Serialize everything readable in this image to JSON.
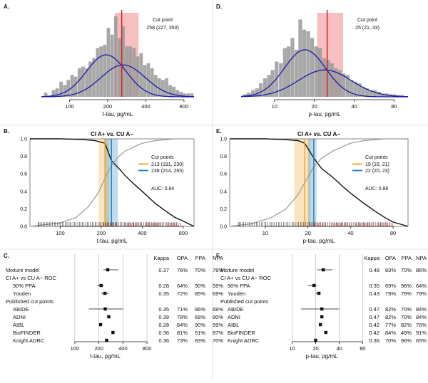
{
  "figure": {
    "panels": [
      {
        "id": "A",
        "letter": "A.",
        "kind": "histogram",
        "xlabel": "t-tau, pg/mL",
        "xscale": "log",
        "xticks": [
          100,
          200,
          400,
          800
        ],
        "xlim": [
          60,
          960
        ],
        "cut_label": "Cut point",
        "cut_value": "258 (227, 350)",
        "cut": 258,
        "ci": [
          227,
          350
        ],
        "colors": {
          "bars": "#999999",
          "curves": "#1a1aaa",
          "cut": "#cc2222",
          "ci_band": "#f4a9a9"
        }
      },
      {
        "id": "D",
        "letter": "D.",
        "kind": "histogram",
        "xlabel": "p-tau, pg/mL",
        "xscale": "log",
        "xticks": [
          10,
          20,
          40,
          80
        ],
        "xlim": [
          5.6,
          102
        ],
        "cut_label": "Cut point",
        "cut_value": "25 (21, 33)",
        "cut": 25,
        "ci": [
          21,
          33
        ],
        "colors": {
          "bars": "#999999",
          "curves": "#1a1aaa",
          "cut": "#cc2222",
          "ci_band": "#f4a9a9"
        }
      },
      {
        "id": "B",
        "letter": "B.",
        "kind": "roc",
        "title": "CI A+ vs. CU A−",
        "xlabel": "t-tau, pg/mL",
        "xscale": "log",
        "xticks": [
          100,
          200,
          400,
          800
        ],
        "xlim": [
          60,
          960
        ],
        "yticks": [
          "0.0",
          "0.2",
          "0.4",
          "0.6",
          "0.8",
          "1.0"
        ],
        "legend_title": "Cut points",
        "legend": [
          {
            "label": "213 (191, 230)",
            "color": "#f0a020",
            "cut": 213,
            "ci": [
              191,
              230
            ]
          },
          {
            "label": "238 (214, 265)",
            "color": "#1f7fc0",
            "cut": 238,
            "ci": [
              214,
              265
            ]
          }
        ],
        "auc": "AUC: 0.84"
      },
      {
        "id": "E",
        "letter": "E.",
        "kind": "roc",
        "title": "CI A+ vs. CU A−",
        "xlabel": "p-tau, pg/mL",
        "xscale": "log",
        "xticks": [
          10,
          20,
          40,
          80
        ],
        "xlim": [
          5.6,
          102
        ],
        "yticks": [
          "0.0",
          "0.2",
          "0.4",
          "0.6",
          "0.8",
          "1.0"
        ],
        "legend_title": "Cut points",
        "legend": [
          {
            "label": "19 (16, 21)",
            "color": "#f0a020",
            "cut": 19,
            "ci": [
              16,
              21
            ]
          },
          {
            "label": "22 (20, 23)",
            "color": "#1f7fc0",
            "cut": 22,
            "ci": [
              20,
              23
            ]
          }
        ],
        "auc": "AUC: 0.88"
      }
    ]
  },
  "chart_data": [
    {
      "type": "bar",
      "panel": "A",
      "xlabel": "t-tau, pg/mL",
      "xscale": "log",
      "bin_centers": [
        65,
        70,
        75,
        80,
        86,
        92,
        98,
        105,
        112,
        120,
        128,
        137,
        146,
        156,
        167,
        178,
        190,
        203,
        217,
        232,
        248,
        265,
        283,
        302,
        323,
        345,
        368,
        393,
        420,
        449,
        479,
        512,
        547,
        584,
        624,
        666,
        711,
        760,
        811,
        867,
        926
      ],
      "values": [
        0.05,
        0.0,
        0.08,
        0.1,
        0.18,
        0.14,
        0.2,
        0.26,
        0.24,
        0.34,
        0.36,
        0.34,
        0.42,
        0.46,
        0.58,
        0.6,
        0.62,
        0.82,
        0.74,
        0.96,
        0.7,
        0.84,
        0.6,
        0.6,
        0.58,
        0.48,
        0.52,
        0.38,
        0.4,
        0.34,
        0.26,
        0.22,
        0.2,
        0.22,
        0.14,
        0.12,
        0.08,
        0.06,
        0.04,
        0.04,
        0.04
      ],
      "mixture_components": [
        {
          "mean": 195,
          "log_sd": 0.36,
          "peak": 0.5
        },
        {
          "mean": 265,
          "log_sd": 0.4,
          "peak": 0.38
        }
      ],
      "cut_point": 258,
      "ci": [
        227,
        350
      ]
    },
    {
      "type": "bar",
      "panel": "D",
      "xlabel": "p-tau, pg/mL",
      "xscale": "log",
      "bin_centers": [
        6.0,
        6.4,
        6.9,
        7.4,
        7.9,
        8.5,
        9.1,
        9.7,
        10.4,
        11.2,
        12.0,
        12.8,
        13.7,
        14.7,
        15.7,
        16.8,
        18.0,
        19.3,
        20.7,
        22.1,
        23.7,
        25.4,
        27.2,
        29.1,
        31.1,
        33.3,
        35.7,
        38.2,
        40.9,
        43.8,
        46.9,
        50.2,
        53.7,
        57.5,
        61.6,
        65.9,
        70.6,
        75.6,
        80.9,
        86.6,
        92.7
      ],
      "values": [
        0.03,
        0.05,
        0.08,
        0.1,
        0.16,
        0.22,
        0.26,
        0.32,
        0.42,
        0.4,
        0.58,
        0.6,
        0.7,
        0.56,
        0.92,
        0.8,
        0.78,
        0.7,
        0.6,
        0.58,
        0.46,
        0.44,
        0.4,
        0.34,
        0.32,
        0.28,
        0.26,
        0.2,
        0.18,
        0.16,
        0.12,
        0.1,
        0.08,
        0.08,
        0.06,
        0.04,
        0.04,
        0.03,
        0.03,
        0.02,
        0.02
      ],
      "mixture_components": [
        {
          "mean": 17,
          "log_sd": 0.36,
          "peak": 0.56
        },
        {
          "mean": 24,
          "log_sd": 0.46,
          "peak": 0.32
        }
      ],
      "cut_point": 25,
      "ci": [
        21,
        33
      ]
    },
    {
      "type": "line",
      "panel": "B",
      "xlabel": "t-tau, pg/mL",
      "xscale": "log",
      "ylim": [
        0,
        1
      ],
      "series": [
        {
          "values_x": [
            60,
            100,
            150,
            180,
            213,
            238,
            270,
            300,
            350,
            400,
            500,
            600,
            700,
            800,
            960
          ],
          "values_y": [
            1.0,
            1.0,
            0.99,
            0.98,
            0.95,
            0.75,
            0.66,
            0.58,
            0.48,
            0.4,
            0.26,
            0.17,
            0.1,
            0.06,
            0.0
          ],
          "color": "#111111"
        },
        {
          "values_x": [
            60,
            100,
            130,
            160,
            190,
            213,
            238,
            270,
            300,
            350,
            400,
            500,
            700,
            960
          ],
          "values_y": [
            0.0,
            0.04,
            0.1,
            0.22,
            0.38,
            0.55,
            0.7,
            0.8,
            0.86,
            0.91,
            0.95,
            0.98,
            1.0,
            1.0
          ],
          "color": "#999999"
        }
      ],
      "cut_points": [
        213,
        238
      ]
    },
    {
      "type": "line",
      "panel": "E",
      "xlabel": "p-tau, pg/mL",
      "xscale": "log",
      "ylim": [
        0,
        1
      ],
      "series": [
        {
          "values_x": [
            5.6,
            10,
            14,
            17,
            19,
            22,
            25,
            30,
            35,
            40,
            50,
            60,
            70,
            80,
            102
          ],
          "values_y": [
            1.0,
            1.0,
            0.99,
            0.98,
            0.95,
            0.78,
            0.66,
            0.56,
            0.46,
            0.38,
            0.26,
            0.17,
            0.1,
            0.05,
            0.0
          ],
          "color": "#111111"
        },
        {
          "values_x": [
            5.6,
            8,
            11,
            14,
            17,
            19,
            22,
            25,
            30,
            35,
            40,
            50,
            70,
            102
          ],
          "values_y": [
            0.0,
            0.03,
            0.1,
            0.2,
            0.36,
            0.5,
            0.68,
            0.78,
            0.86,
            0.91,
            0.95,
            0.98,
            1.0,
            1.0
          ],
          "color": "#999999"
        }
      ],
      "cut_points": [
        19,
        22
      ]
    },
    {
      "type": "scatter",
      "panel": "C",
      "xlabel": "t-tau, pg/mL",
      "xscale": "log",
      "xticks": [
        100,
        200,
        400,
        800
      ],
      "xlim": [
        60,
        960
      ],
      "columns": [
        "Kappa",
        "OPA",
        "PPA",
        "NPA"
      ],
      "rows": [
        {
          "label": "Mixture model",
          "indent": 0,
          "estimate": 258,
          "ci": [
            227,
            350
          ],
          "values": [
            "0.37",
            "76%",
            "70%",
            "78%"
          ]
        },
        {
          "label": "CI A+ vs CU A− ROC",
          "indent": 0,
          "header": true
        },
        {
          "label": "90% PPA",
          "indent": 1,
          "estimate": 213,
          "ci": [
            191,
            230
          ],
          "values": [
            "0.28",
            "64%",
            "90%",
            "59%"
          ]
        },
        {
          "label": "Youden",
          "indent": 1,
          "estimate": 238,
          "ci": [
            214,
            265
          ],
          "values": [
            "0.35",
            "72%",
            "85%",
            "69%"
          ]
        },
        {
          "label": "Published cut points",
          "indent": 0,
          "header": true
        },
        {
          "label": "ABIDE",
          "indent": 1,
          "estimate": 240,
          "ci": [
            150,
            400
          ],
          "values": [
            "0.35",
            "71%",
            "86%",
            "68%"
          ]
        },
        {
          "label": "ADNI",
          "indent": 1,
          "estimate": 266,
          "values": [
            "0.39",
            "78%",
            "68%",
            "80%"
          ]
        },
        {
          "label": "AIBL",
          "indent": 1,
          "estimate": 210,
          "values": [
            "0.28",
            "64%",
            "90%",
            "59%"
          ]
        },
        {
          "label": "BioFINDER",
          "indent": 1,
          "estimate": 300,
          "values": [
            "0.36",
            "81%",
            "51%",
            "87%"
          ]
        },
        {
          "label": "Knight ADRC",
          "indent": 1,
          "estimate": 250,
          "values": [
            "0.36",
            "73%",
            "83%",
            "70%"
          ]
        }
      ]
    },
    {
      "type": "scatter",
      "panel": "F",
      "xlabel": "p-tau, pg/mL",
      "xscale": "log",
      "xticks": [
        10,
        20,
        40,
        80
      ],
      "xlim": [
        5.6,
        102
      ],
      "columns": [
        "Kappa",
        "OPA",
        "PPA",
        "NPA"
      ],
      "rows": [
        {
          "label": "Mixture model",
          "indent": 0,
          "estimate": 25,
          "ci": [
            21,
            33
          ],
          "values": [
            "0.48",
            "83%",
            "70%",
            "86%"
          ]
        },
        {
          "label": "CI A+ vs CU A− ROC",
          "indent": 0,
          "header": true
        },
        {
          "label": "90% PPA",
          "indent": 1,
          "estimate": 19,
          "ci": [
            16,
            21
          ],
          "values": [
            "0.35",
            "69%",
            "96%",
            "64%"
          ]
        },
        {
          "label": "Youden",
          "indent": 1,
          "estimate": 22,
          "ci": [
            20,
            23
          ],
          "values": [
            "0.43",
            "79%",
            "79%",
            "79%"
          ]
        },
        {
          "label": "Published cut points",
          "indent": 0,
          "header": true
        },
        {
          "label": "ABIDE",
          "indent": 1,
          "estimate": 24,
          "ci": [
            13,
            40
          ],
          "values": [
            "0.47",
            "82%",
            "70%",
            "84%"
          ]
        },
        {
          "label": "ADNI",
          "indent": 1,
          "estimate": 24,
          "values": [
            "0.47",
            "82%",
            "70%",
            "84%"
          ]
        },
        {
          "label": "AIBL",
          "indent": 1,
          "estimate": 23,
          "values": [
            "0.42",
            "77%",
            "82%",
            "76%"
          ]
        },
        {
          "label": "BioFINDER",
          "indent": 1,
          "estimate": 27,
          "values": [
            "0.42",
            "84%",
            "49%",
            "91%"
          ]
        },
        {
          "label": "Knight ADRC",
          "indent": 1,
          "estimate": 20,
          "values": [
            "0.36",
            "70%",
            "96%",
            "65%"
          ]
        }
      ]
    }
  ],
  "forest_letters": {
    "C": "C.",
    "F": "F."
  }
}
